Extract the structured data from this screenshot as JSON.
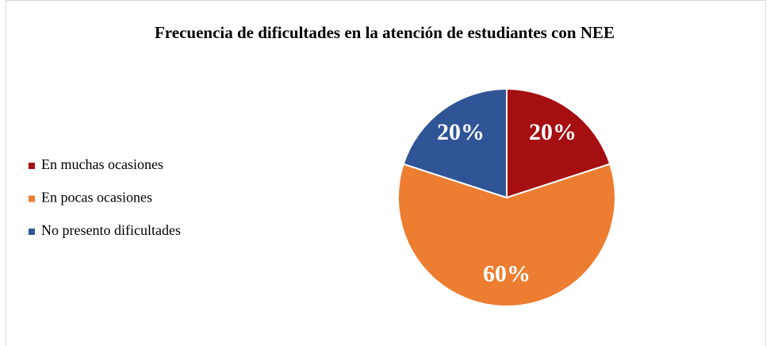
{
  "chart_data": {
    "type": "pie",
    "title": "Frecuencia de dificultades en la atención de estudiantes con NEE",
    "categories": [
      "En muchas ocasiones",
      "En pocas ocasiones",
      "No presento dificultades"
    ],
    "values": [
      20,
      60,
      20
    ],
    "value_labels": [
      "20%",
      "60%",
      "20%"
    ],
    "colors": [
      "#a50f11",
      "#ed7d31",
      "#2f5597"
    ],
    "legend": "left"
  }
}
